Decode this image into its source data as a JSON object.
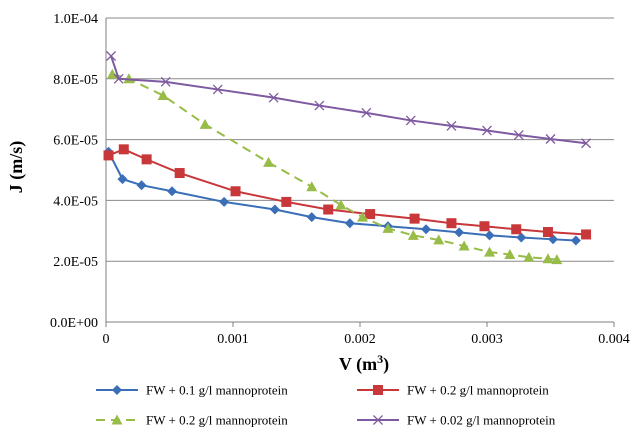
{
  "chart_data": {
    "type": "line",
    "title": "",
    "xlabel": "V (m",
    "xlabel_sup": "3",
    "xlabel_end": ")",
    "ylabel": "J (m/s)",
    "xlim": [
      0,
      0.004
    ],
    "ylim": [
      0,
      0.0001
    ],
    "x_ticks": [
      0,
      0.001,
      0.002,
      0.003,
      0.004
    ],
    "x_tick_labels": [
      "0",
      "0.001",
      "0.002",
      "0.003",
      "0.004"
    ],
    "y_ticks": [
      0,
      2e-05,
      4e-05,
      6e-05,
      8e-05,
      0.0001
    ],
    "y_tick_labels": [
      "0.0E+00",
      "2.0E-05",
      "4.0E-05",
      "6.0E-05",
      "8.0E-05",
      "1.0E-04"
    ],
    "grid": "horizontal",
    "legend_position": "bottom",
    "series": [
      {
        "name": "FW + 0.1 g/l mannoprotein",
        "color": "#3A6FB8",
        "marker": "diamond",
        "dash": "solid",
        "x": [
          2e-05,
          0.00013,
          0.00028,
          0.00052,
          0.00093,
          0.00133,
          0.00162,
          0.00192,
          0.00222,
          0.00252,
          0.00278,
          0.00302,
          0.00327,
          0.00352,
          0.0037
        ],
        "y": [
          5.6e-05,
          4.7e-05,
          4.5e-05,
          4.3e-05,
          3.95e-05,
          3.7e-05,
          3.45e-05,
          3.25e-05,
          3.15e-05,
          3.05e-05,
          2.95e-05,
          2.85e-05,
          2.78e-05,
          2.72e-05,
          2.68e-05
        ]
      },
      {
        "name": "FW + 0.2 g/l mannoprotein",
        "color": "#C8373A",
        "marker": "square",
        "dash": "solid",
        "x": [
          2e-05,
          0.00014,
          0.00032,
          0.00058,
          0.00102,
          0.00142,
          0.00175,
          0.00208,
          0.00243,
          0.00272,
          0.00298,
          0.00323,
          0.00348,
          0.00378
        ],
        "y": [
          5.48e-05,
          5.68e-05,
          5.35e-05,
          4.9e-05,
          4.3e-05,
          3.95e-05,
          3.7e-05,
          3.55e-05,
          3.4e-05,
          3.25e-05,
          3.15e-05,
          3.05e-05,
          2.96e-05,
          2.88e-05
        ]
      },
      {
        "name": "FW + 0.2 g/l mannoprotein",
        "color": "#98BC48",
        "marker": "triangle",
        "dash": "dashed",
        "x": [
          5e-05,
          0.00018,
          0.00045,
          0.00078,
          0.00128,
          0.00162,
          0.00185,
          0.00202,
          0.00222,
          0.00242,
          0.00262,
          0.00282,
          0.00302,
          0.00318,
          0.00333,
          0.00348,
          0.00355
        ],
        "y": [
          8.15e-05,
          8e-05,
          7.45e-05,
          6.5e-05,
          5.25e-05,
          4.45e-05,
          3.85e-05,
          3.45e-05,
          3.08e-05,
          2.85e-05,
          2.7e-05,
          2.5e-05,
          2.3e-05,
          2.22e-05,
          2.13e-05,
          2.08e-05,
          2.05e-05
        ]
      },
      {
        "name": "FW + 0.02 g/l mannoprotein",
        "color": "#7E5AA0",
        "marker": "x",
        "dash": "solid",
        "x": [
          4e-05,
          0.0001,
          0.00047,
          0.00088,
          0.00132,
          0.00168,
          0.00205,
          0.0024,
          0.00272,
          0.003,
          0.00325,
          0.0035,
          0.00378
        ],
        "y": [
          8.75e-05,
          8e-05,
          7.9e-05,
          7.65e-05,
          7.38e-05,
          7.12e-05,
          6.88e-05,
          6.63e-05,
          6.45e-05,
          6.3e-05,
          6.15e-05,
          6.02e-05,
          5.88e-05
        ]
      }
    ]
  }
}
